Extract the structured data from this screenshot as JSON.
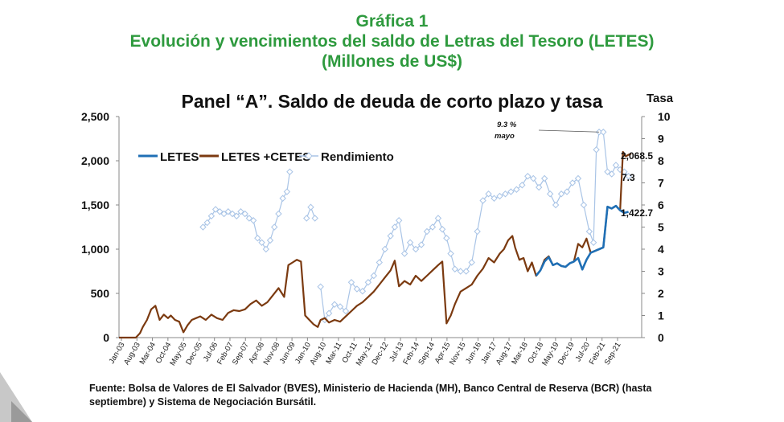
{
  "header": {
    "line1": "Gráfica 1",
    "line2": "Evolución y vencimientos del saldo de Letras del Tesoro (LETES)",
    "line3": "(Millones de US$)"
  },
  "footer": {
    "source": "Fuente: Bolsa de Valores de El Salvador (BVES), Ministerio de Hacienda (MH), Banco Central de Reserva (BCR) (hasta septiembre) y Sistema de Negociación Bursátil."
  },
  "chart_data": {
    "type": "line",
    "title": "Panel “A”. Saldo de deuda de corto plazo y tasa",
    "xlabel": "",
    "ylabel": "",
    "y2label": "Tasa",
    "ylim": [
      0,
      2500
    ],
    "y2lim": [
      0,
      10
    ],
    "y_ticks": [
      "0",
      "500",
      "1,000",
      "1,500",
      "2,000",
      "2,500"
    ],
    "y2_ticks": [
      "0",
      "1",
      "2",
      "3",
      "4",
      "5",
      "6",
      "7",
      "8",
      "9",
      "10"
    ],
    "x_ticks": [
      "Jan-03",
      "Aug-03",
      "Mar-04",
      "Oct-04",
      "May-05",
      "Dec-05",
      "Jul-06",
      "Feb-07",
      "Sep-07",
      "Apr-08",
      "Nov-08",
      "Jun-09",
      "Jan-10",
      "Aug-10",
      "Mar-11",
      "Oct-11",
      "May-12",
      "Dec-12",
      "Jul-13",
      "Feb-14",
      "Sep-14",
      "Apr-15",
      "Nov-15",
      "Jun-16",
      "Jan-17",
      "Aug-17",
      "Mar-18",
      "Oct-18",
      "May-19",
      "Dec-19",
      "Jul-20",
      "Feb-21",
      "Sep-21"
    ],
    "x_range": [
      2003.0,
      2021.67
    ],
    "legend": "top-left",
    "grid": false,
    "colors": {
      "letes": "#1f6fb5",
      "letes_cetes": "#7b3a10",
      "rendimiento": "#a9c4e6"
    },
    "series": [
      {
        "name": "LETES",
        "axis": "left",
        "x": [
          2017.9,
          2018.05,
          2018.2,
          2018.35,
          2018.5,
          2018.65,
          2018.8,
          2018.95,
          2019.1,
          2019.25,
          2019.4,
          2019.55,
          2019.7,
          2019.85,
          2020.0,
          2020.15,
          2020.3,
          2020.45,
          2020.6,
          2020.75,
          2020.9,
          2021.05,
          2021.2
        ],
        "values": [
          700,
          760,
          860,
          910,
          820,
          840,
          810,
          800,
          840,
          860,
          900,
          770,
          880,
          960,
          980,
          1000,
          1020,
          1480,
          1460,
          1490,
          1440,
          1410,
          1422.7
        ]
      },
      {
        "name": "LETES +CETES",
        "axis": "left",
        "x": [
          2003.0,
          2003.2,
          2003.4,
          2003.6,
          2003.75,
          2003.85,
          2004.0,
          2004.15,
          2004.3,
          2004.45,
          2004.6,
          2004.75,
          2004.85,
          2005.0,
          2005.15,
          2005.3,
          2005.45,
          2005.6,
          2005.75,
          2005.9,
          2006.1,
          2006.3,
          2006.5,
          2006.7,
          2006.9,
          2007.1,
          2007.3,
          2007.5,
          2007.7,
          2007.9,
          2008.1,
          2008.3,
          2008.5,
          2008.7,
          2008.9,
          2009.05,
          2009.2,
          2009.35,
          2009.5,
          2009.65,
          2009.8,
          2009.95,
          2010.1,
          2010.2,
          2010.35,
          2010.5,
          2010.7,
          2010.9,
          2011.1,
          2011.3,
          2011.5,
          2011.7,
          2011.9,
          2012.1,
          2012.3,
          2012.5,
          2012.7,
          2012.85,
          2013.0,
          2013.2,
          2013.4,
          2013.6,
          2013.8,
          2014.0,
          2014.2,
          2014.4,
          2014.55,
          2014.7,
          2014.85,
          2015.0,
          2015.2,
          2015.4,
          2015.6,
          2015.8,
          2016.0,
          2016.2,
          2016.4,
          2016.6,
          2016.75,
          2016.9,
          2017.05,
          2017.15,
          2017.3,
          2017.45,
          2017.6,
          2017.75,
          2017.9,
          2018.05,
          2018.2,
          2018.35,
          2018.5,
          2018.65,
          2018.8,
          2018.95,
          2019.1,
          2019.25,
          2019.4,
          2019.55,
          2019.7,
          2019.85,
          2020.0,
          2020.15,
          2020.3,
          2020.45,
          2020.6,
          2020.75,
          2020.9,
          2021.0,
          2021.1,
          2021.2,
          2021.3
        ],
        "values": [
          0,
          0,
          0,
          0,
          50,
          120,
          200,
          320,
          360,
          200,
          260,
          220,
          250,
          200,
          180,
          60,
          140,
          200,
          220,
          240,
          200,
          260,
          220,
          200,
          280,
          310,
          300,
          320,
          380,
          420,
          360,
          400,
          480,
          560,
          460,
          820,
          850,
          880,
          860,
          250,
          200,
          150,
          120,
          200,
          220,
          170,
          200,
          180,
          240,
          300,
          360,
          400,
          460,
          520,
          600,
          680,
          760,
          870,
          580,
          640,
          600,
          700,
          640,
          700,
          760,
          820,
          860,
          160,
          250,
          380,
          520,
          560,
          600,
          700,
          780,
          900,
          850,
          950,
          1000,
          1100,
          1150,
          1020,
          880,
          900,
          750,
          850,
          700,
          760,
          880,
          920,
          820,
          840,
          810,
          800,
          840,
          860,
          1060,
          1020,
          1120,
          960,
          980,
          1000,
          1020,
          1480,
          1460,
          1490,
          1440,
          2100,
          2050,
          2068.5,
          2080
        ]
      },
      {
        "name": "Rendimiento",
        "axis": "right",
        "segments": [
          {
            "x": [
              2006.0,
              2006.15,
              2006.3,
              2006.45,
              2006.6,
              2006.75,
              2006.9,
              2007.05,
              2007.2,
              2007.35,
              2007.5,
              2007.65,
              2007.8,
              2007.95,
              2008.1,
              2008.25,
              2008.4,
              2008.55,
              2008.7,
              2008.85,
              2009.0,
              2009.1
            ],
            "values": [
              5.0,
              5.2,
              5.5,
              5.8,
              5.7,
              5.6,
              5.7,
              5.6,
              5.5,
              5.7,
              5.6,
              5.4,
              5.3,
              4.5,
              4.3,
              4.0,
              4.4,
              5.0,
              5.6,
              6.3,
              6.6,
              7.5
            ]
          },
          {
            "x": [
              2009.7,
              2009.85,
              2010.0
            ],
            "values": [
              5.4,
              5.9,
              5.4
            ]
          },
          {
            "x": [
              2010.2,
              2010.35,
              2010.5,
              2010.7,
              2010.9,
              2011.1,
              2011.3,
              2011.5,
              2011.7,
              2011.9,
              2012.1,
              2012.3,
              2012.5,
              2012.7,
              2012.85,
              2013.0,
              2013.2,
              2013.4,
              2013.6,
              2013.8,
              2014.0,
              2014.2,
              2014.4,
              2014.55,
              2014.7,
              2014.85,
              2015.0,
              2015.2,
              2015.4,
              2015.6,
              2015.8,
              2016.0,
              2016.2,
              2016.4,
              2016.6,
              2016.8,
              2017.0,
              2017.2,
              2017.4,
              2017.6,
              2017.8,
              2018.0,
              2018.2,
              2018.4,
              2018.6,
              2018.8,
              2019.0,
              2019.2,
              2019.4,
              2019.6,
              2019.8,
              2019.95,
              2020.05,
              2020.15,
              2020.3,
              2020.45,
              2020.6,
              2020.75,
              2020.9,
              2021.05,
              2021.2
            ],
            "values": [
              2.3,
              0.8,
              1.1,
              1.5,
              1.4,
              1.2,
              2.5,
              2.2,
              2.1,
              2.5,
              2.8,
              3.4,
              4.0,
              4.6,
              5.0,
              5.3,
              3.8,
              4.3,
              4.0,
              4.2,
              4.8,
              5.0,
              5.4,
              4.9,
              4.5,
              3.8,
              3.1,
              3.0,
              3.0,
              3.4,
              4.8,
              6.2,
              6.5,
              6.3,
              6.4,
              6.5,
              6.6,
              6.7,
              6.9,
              7.3,
              7.2,
              6.8,
              7.2,
              6.5,
              6.0,
              6.5,
              6.6,
              7.0,
              7.2,
              6.0,
              4.8,
              4.3,
              8.5,
              9.3,
              9.3,
              7.5,
              7.4,
              7.8,
              7.6,
              7.5,
              7.3
            ]
          }
        ]
      }
    ],
    "annotations": [
      {
        "text": "9.3 %",
        "target_x": 2020.15,
        "target_y2": 9.3
      },
      {
        "text": "mayo"
      },
      {
        "text": "2,068.5"
      },
      {
        "text": "7.3"
      },
      {
        "text": "1,422.7"
      }
    ]
  }
}
